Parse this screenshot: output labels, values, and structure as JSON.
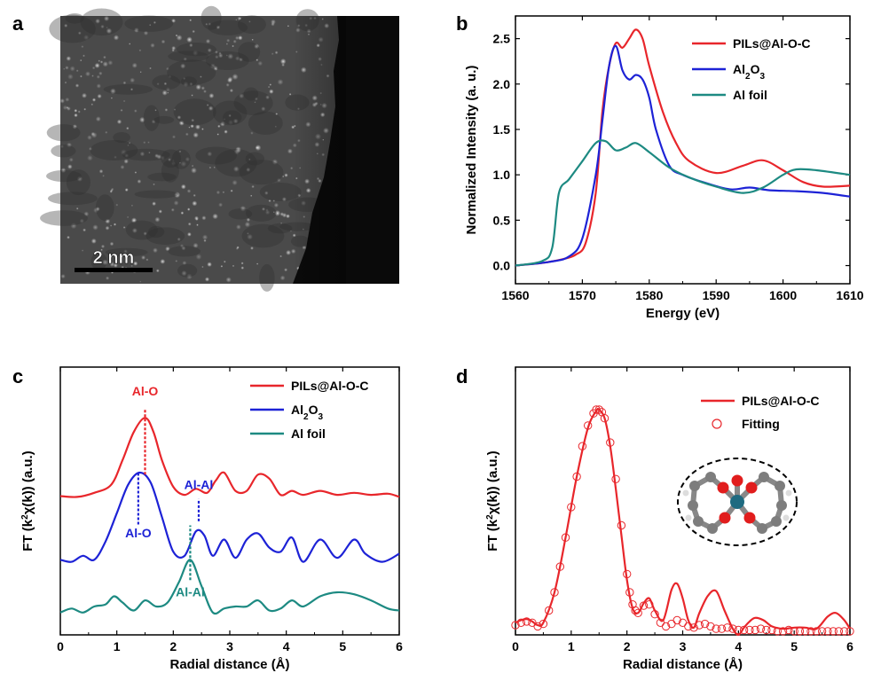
{
  "panels": {
    "a": "a",
    "b": "b",
    "c": "c",
    "d": "d"
  },
  "colors": {
    "pils": "#e8262b",
    "al2o3": "#1d22d6",
    "alfoil": "#1d8a82",
    "black": "#000000"
  },
  "image_a": {
    "scale_bar_label": "2 nm"
  },
  "inset_d": {
    "description_icon": "molecular-structure-icon"
  },
  "chart_data": [
    {
      "id": "b",
      "type": "line",
      "xlabel": "Energy (eV)",
      "ylabel": "Normalized Intensity (a. u.)",
      "xlim": [
        1560,
        1610
      ],
      "ylim": [
        -0.2,
        2.75
      ],
      "xticks": [
        1560,
        1570,
        1580,
        1590,
        1600,
        1610
      ],
      "xtick_labels": [
        "1560",
        "1570",
        "1580",
        "1590",
        "1600",
        "1610"
      ],
      "yticks": [
        0.0,
        0.5,
        1.0,
        1.5,
        2.0,
        2.5
      ],
      "ytick_labels": [
        "0.0",
        "0.5",
        "1.0",
        "1.5",
        "2.0",
        "2.5"
      ],
      "legend": [
        "PILs@Al-O-C",
        "Al2O3",
        "Al foil"
      ],
      "legend_position": "top-right",
      "series": [
        {
          "name": "PILs@Al-O-C",
          "color": "#e8262b",
          "x": [
            1560,
            1564,
            1567,
            1569,
            1570.5,
            1572,
            1573,
            1574,
            1575,
            1576,
            1577,
            1578,
            1579,
            1580,
            1582,
            1584,
            1586,
            1590,
            1594,
            1597,
            1600,
            1603,
            1606,
            1610
          ],
          "y": [
            0,
            0.03,
            0.07,
            0.12,
            0.25,
            0.8,
            1.7,
            2.2,
            2.45,
            2.4,
            2.5,
            2.6,
            2.5,
            2.2,
            1.7,
            1.35,
            1.15,
            1.02,
            1.1,
            1.16,
            1.05,
            0.92,
            0.87,
            0.88
          ]
        },
        {
          "name": "Al2O3",
          "color": "#1d22d6",
          "x": [
            1560,
            1565,
            1568,
            1570,
            1572,
            1573,
            1574,
            1575,
            1576,
            1577,
            1578,
            1579,
            1580,
            1581,
            1583,
            1585,
            1588,
            1592,
            1595,
            1598,
            1602,
            1606,
            1610
          ],
          "y": [
            0,
            0.04,
            0.1,
            0.3,
            1.0,
            1.6,
            2.2,
            2.42,
            2.15,
            2.05,
            2.1,
            2.05,
            1.85,
            1.5,
            1.1,
            1.0,
            0.92,
            0.84,
            0.86,
            0.83,
            0.82,
            0.8,
            0.76
          ]
        },
        {
          "name": "Al foil",
          "color": "#1d8a82",
          "x": [
            1560,
            1564,
            1565.5,
            1566.5,
            1568,
            1570,
            1572,
            1573.5,
            1575,
            1576.5,
            1578,
            1580,
            1583,
            1586,
            1590,
            1594,
            1597,
            1600,
            1602,
            1605,
            1610
          ],
          "y": [
            0,
            0.05,
            0.2,
            0.8,
            0.95,
            1.15,
            1.35,
            1.37,
            1.27,
            1.3,
            1.35,
            1.25,
            1.08,
            0.97,
            0.87,
            0.8,
            0.86,
            1.0,
            1.06,
            1.05,
            1.0
          ]
        }
      ]
    },
    {
      "id": "c",
      "type": "line",
      "xlabel": "Radial distance (Å)",
      "ylabel": "FT (k²χ(k)) (a.u.)",
      "ylabel_parts": [
        "FT (k",
        "2",
        "χ(k)) (a.u.)"
      ],
      "xlim": [
        0,
        6
      ],
      "ylim": [
        -3.4,
        3.2
      ],
      "xticks": [
        0,
        1,
        2,
        3,
        4,
        5,
        6
      ],
      "xtick_labels": [
        "0",
        "1",
        "2",
        "3",
        "4",
        "5",
        "6"
      ],
      "legend": [
        "PILs@Al-O-C",
        "Al2O3",
        "Al foil"
      ],
      "legend_position": "top-right",
      "annotations": [
        {
          "text": "Al-O",
          "x": 1.5,
          "y_from": 0.55,
          "y_to": 2.15,
          "text_y": 2.5,
          "color": "#e8262b",
          "anchor": "middle"
        },
        {
          "text": "Al-O",
          "x": 1.38,
          "y_from": -0.68,
          "y_to": 0.6,
          "text_y": -1.0,
          "color": "#1d22d6",
          "anchor": "middle"
        },
        {
          "text": "Al-Al",
          "x": 2.45,
          "y_from": -0.6,
          "y_to": -0.05,
          "text_y": 0.2,
          "color": "#1d22d6",
          "anchor": "middle"
        },
        {
          "text": "Al-Al",
          "x": 2.3,
          "y_from": -2.05,
          "y_to": -0.7,
          "text_y": -2.45,
          "color": "#1d8a82",
          "anchor": "middle"
        }
      ],
      "series": [
        {
          "name": "PILs@Al-O-C",
          "color": "#e8262b",
          "x": [
            0,
            0.3,
            0.6,
            0.9,
            1.1,
            1.3,
            1.5,
            1.65,
            1.8,
            2.0,
            2.2,
            2.4,
            2.6,
            2.75,
            2.9,
            3.1,
            3.3,
            3.5,
            3.7,
            3.9,
            4.1,
            4.3,
            4.6,
            4.9,
            5.2,
            5.5,
            5.8,
            6.0
          ],
          "y": [
            0.02,
            0,
            0.1,
            0.3,
            0.9,
            1.6,
            1.95,
            1.6,
            0.9,
            0.25,
            0.05,
            0.2,
            0.1,
            0.4,
            0.6,
            0.15,
            0.15,
            0.55,
            0.45,
            0.05,
            0.15,
            0.05,
            0.15,
            0.05,
            0.1,
            0.05,
            0.08,
            0
          ]
        },
        {
          "name": "Al2O3",
          "color": "#1d22d6",
          "x": [
            0,
            0.2,
            0.4,
            0.6,
            0.8,
            1.0,
            1.2,
            1.4,
            1.6,
            1.8,
            2.0,
            2.2,
            2.4,
            2.55,
            2.7,
            2.9,
            3.1,
            3.3,
            3.5,
            3.7,
            3.9,
            4.1,
            4.3,
            4.6,
            4.9,
            5.2,
            5.4,
            5.7,
            6.0
          ],
          "y": [
            -1.55,
            -1.6,
            -1.45,
            -1.55,
            -1.1,
            -0.4,
            0.3,
            0.6,
            0.35,
            -0.5,
            -1.35,
            -1.45,
            -0.85,
            -0.95,
            -1.45,
            -1.05,
            -1.5,
            -1.05,
            -0.9,
            -1.25,
            -1.35,
            -1.0,
            -1.6,
            -1.05,
            -1.5,
            -1.05,
            -1.4,
            -1.6,
            -1.4
          ]
        },
        {
          "name": "Al foil",
          "color": "#1d8a82",
          "x": [
            0,
            0.2,
            0.4,
            0.6,
            0.8,
            0.95,
            1.1,
            1.3,
            1.5,
            1.7,
            1.9,
            2.1,
            2.3,
            2.5,
            2.7,
            2.9,
            3.1,
            3.3,
            3.5,
            3.7,
            3.9,
            4.1,
            4.3,
            4.6,
            4.9,
            5.2,
            5.5,
            5.8,
            6.0
          ],
          "y": [
            -2.85,
            -2.75,
            -2.85,
            -2.7,
            -2.65,
            -2.45,
            -2.6,
            -2.8,
            -2.55,
            -2.7,
            -2.6,
            -2.1,
            -1.55,
            -2.2,
            -2.85,
            -2.75,
            -2.7,
            -2.7,
            -2.55,
            -2.8,
            -2.75,
            -2.55,
            -2.7,
            -2.45,
            -2.35,
            -2.4,
            -2.55,
            -2.75,
            -2.8
          ]
        }
      ]
    },
    {
      "id": "d",
      "type": "line",
      "xlabel": "Radial distance (Å)",
      "ylabel": "FT (k²χ(k)) (a.u.)",
      "ylabel_parts": [
        "FT (k",
        "2",
        "χ(k)) (a.u.)"
      ],
      "xlim": [
        0,
        6
      ],
      "ylim": [
        0,
        2.2
      ],
      "xticks": [
        0,
        1,
        2,
        3,
        4,
        5,
        6
      ],
      "xtick_labels": [
        "0",
        "1",
        "2",
        "3",
        "4",
        "5",
        "6"
      ],
      "legend": [
        "PILs@Al-O-C",
        "Fitting"
      ],
      "legend_position": "top-right",
      "series": [
        {
          "name": "PILs@Al-O-C",
          "color": "#e8262b",
          "style": "line",
          "x": [
            0,
            0.1,
            0.2,
            0.3,
            0.4,
            0.5,
            0.7,
            0.9,
            1.1,
            1.3,
            1.45,
            1.5,
            1.6,
            1.7,
            1.8,
            1.9,
            2.0,
            2.1,
            2.2,
            2.3,
            2.4,
            2.5,
            2.65,
            2.8,
            2.9,
            3.0,
            3.1,
            3.2,
            3.3,
            3.45,
            3.6,
            3.75,
            3.9,
            4.0,
            4.1,
            4.2,
            4.3,
            4.45,
            4.6,
            4.8,
            5.0,
            5.2,
            5.4,
            5.6,
            5.75,
            5.9,
            6.0
          ],
          "y": [
            0.1,
            0.12,
            0.13,
            0.11,
            0.08,
            0.1,
            0.35,
            0.8,
            1.3,
            1.7,
            1.84,
            1.85,
            1.78,
            1.55,
            1.2,
            0.82,
            0.45,
            0.22,
            0.18,
            0.26,
            0.3,
            0.2,
            0.12,
            0.37,
            0.42,
            0.3,
            0.12,
            0.06,
            0.18,
            0.32,
            0.36,
            0.2,
            0.05,
            0.0,
            0.06,
            0.11,
            0.14,
            0.12,
            0.07,
            0.05,
            0.06,
            0.06,
            0.05,
            0.15,
            0.18,
            0.12,
            0.05
          ]
        },
        {
          "name": "Fitting",
          "color": "#e8262b",
          "style": "circles",
          "x": [
            0,
            0.1,
            0.2,
            0.3,
            0.4,
            0.5,
            0.6,
            0.7,
            0.8,
            0.9,
            1.0,
            1.1,
            1.2,
            1.3,
            1.4,
            1.45,
            1.5,
            1.55,
            1.6,
            1.7,
            1.8,
            1.9,
            2.0,
            2.05,
            2.1,
            2.15,
            2.2,
            2.3,
            2.4,
            2.5,
            2.6,
            2.7,
            2.8,
            2.9,
            3.0,
            3.1,
            3.2,
            3.3,
            3.4,
            3.5,
            3.6,
            3.7,
            3.8,
            3.9,
            4.0,
            4.1,
            4.2,
            4.3,
            4.4,
            4.5,
            4.6,
            4.7,
            4.8,
            4.9,
            5.0,
            5.1,
            5.2,
            5.3,
            5.4,
            5.5,
            5.6,
            5.7,
            5.8,
            5.9,
            6.0
          ],
          "y": [
            0.08,
            0.1,
            0.11,
            0.1,
            0.07,
            0.09,
            0.2,
            0.35,
            0.56,
            0.8,
            1.05,
            1.3,
            1.55,
            1.72,
            1.82,
            1.85,
            1.85,
            1.83,
            1.78,
            1.58,
            1.28,
            0.9,
            0.5,
            0.35,
            0.25,
            0.2,
            0.18,
            0.24,
            0.25,
            0.17,
            0.1,
            0.07,
            0.09,
            0.12,
            0.1,
            0.07,
            0.06,
            0.08,
            0.09,
            0.07,
            0.05,
            0.05,
            0.06,
            0.05,
            0.04,
            0.04,
            0.04,
            0.04,
            0.05,
            0.04,
            0.04,
            0.03,
            0.03,
            0.04,
            0.03,
            0.03,
            0.03,
            0.03,
            0.03,
            0.03,
            0.03,
            0.03,
            0.03,
            0.03,
            0.03
          ]
        }
      ]
    }
  ]
}
